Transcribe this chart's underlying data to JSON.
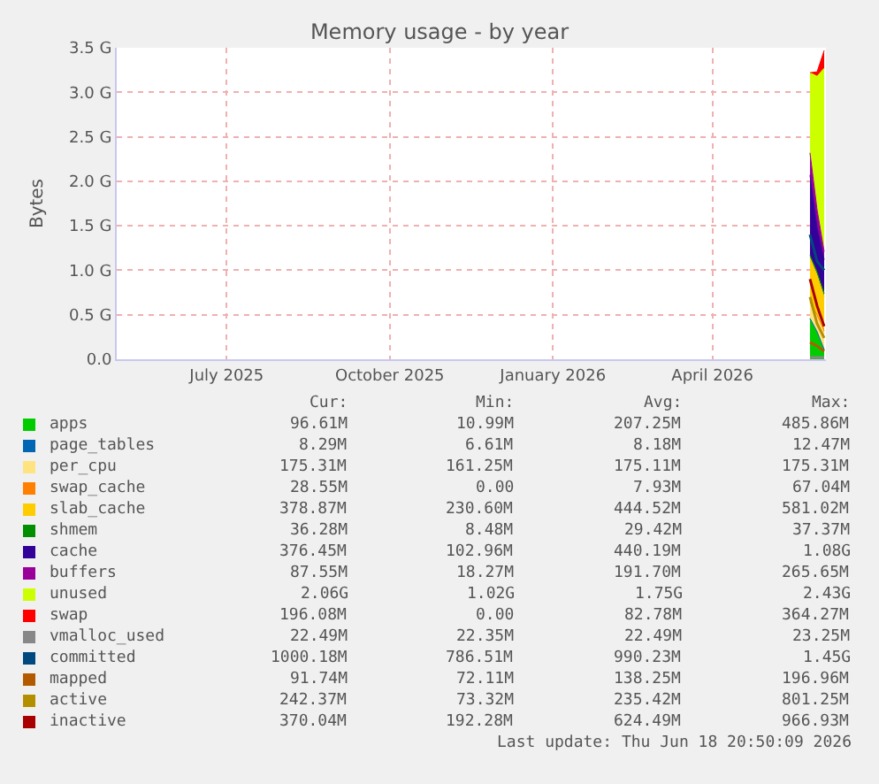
{
  "chart_data": {
    "type": "area",
    "title": "Memory usage - by year",
    "ylabel": "Bytes",
    "stacked": true,
    "grid": true,
    "legend": "bottom",
    "marker": "none",
    "x": [
      "2026-06-10",
      "2026-06-14",
      "2026-06-18"
    ],
    "xlim": [
      "2025-05-15",
      "2026-06-19"
    ],
    "xticks": [
      {
        "value": "2025-07-16",
        "label": "July 2025"
      },
      {
        "value": "2025-10-16",
        "label": "October 2025"
      },
      {
        "value": "2026-01-16",
        "label": "January 2026"
      },
      {
        "value": "2026-04-16",
        "label": "April 2026"
      }
    ],
    "ylim": [
      0,
      3.5
    ],
    "yticks": [
      {
        "value": 0,
        "label": "0.0"
      },
      {
        "value": 0.5,
        "label": "0.5 G"
      },
      {
        "value": 1.0,
        "label": "1.0 G"
      },
      {
        "value": 1.5,
        "label": "1.5 G"
      },
      {
        "value": 2.0,
        "label": "2.0 G"
      },
      {
        "value": 2.5,
        "label": "2.5 G"
      },
      {
        "value": 3.0,
        "label": "3.0 G"
      },
      {
        "value": 3.5,
        "label": "3.5 G"
      }
    ],
    "series": [
      {
        "name": "apps",
        "color": "#00cc00",
        "values": [
          0.45,
          0.3,
          0.1
        ]
      },
      {
        "name": "page_tables",
        "color": "#0066b3",
        "values": [
          0.01,
          0.01,
          0.01
        ]
      },
      {
        "name": "per_cpu",
        "color": "#ffe380",
        "values": [
          0.18,
          0.18,
          0.18
        ]
      },
      {
        "name": "swap_cache",
        "color": "#ff8000",
        "values": [
          0,
          0.01,
          0.03
        ]
      },
      {
        "name": "slab_cache",
        "color": "#ffcc00",
        "values": [
          0.5,
          0.45,
          0.38
        ]
      },
      {
        "name": "shmem",
        "color": "#008f00",
        "values": [
          0.03,
          0.03,
          0.04
        ]
      },
      {
        "name": "cache",
        "color": "#330099",
        "values": [
          0.9,
          0.5,
          0.38
        ]
      },
      {
        "name": "buffers",
        "color": "#990099",
        "values": [
          0.25,
          0.2,
          0.09
        ]
      },
      {
        "name": "unused",
        "color": "#ccff00",
        "values": [
          0.9,
          1.5,
          2.06
        ]
      },
      {
        "name": "swap",
        "color": "#ff0000",
        "values": [
          0,
          0.05,
          0.2
        ]
      },
      {
        "name": "vmalloc_used",
        "type": "line",
        "color": "#888888",
        "values": [
          0.02,
          0.02,
          0.02
        ]
      },
      {
        "name": "committed",
        "type": "line",
        "color": "#00487d",
        "values": [
          1.4,
          1.1,
          1.0
        ]
      },
      {
        "name": "mapped",
        "type": "line",
        "color": "#b35a00",
        "values": [
          0.19,
          0.15,
          0.09
        ]
      },
      {
        "name": "active",
        "type": "line",
        "color": "#b38f00",
        "values": [
          0.7,
          0.4,
          0.24
        ]
      },
      {
        "name": "inactive",
        "type": "line",
        "color": "#a80000",
        "values": [
          0.9,
          0.6,
          0.37
        ]
      }
    ],
    "annotations": [
      "Cur:",
      "Min:",
      "Avg:",
      "Max:",
      "96.61M",
      "10.99M",
      "207.25M",
      "485.86M",
      "8.29M",
      "6.61M",
      "8.18M",
      "12.47M",
      "175.31M",
      "161.25M",
      "175.11M",
      "175.31M",
      "28.55M",
      "0.00",
      "7.93M",
      "67.04M",
      "378.87M",
      "230.60M",
      "444.52M",
      "581.02M",
      "36.28M",
      "8.48M",
      "29.42M",
      "37.37M",
      "376.45M",
      "102.96M",
      "440.19M",
      "1.08G",
      "87.55M",
      "18.27M",
      "191.70M",
      "265.65M",
      "2.06G",
      "1.02G",
      "1.75G",
      "2.43G",
      "196.08M",
      "0.00",
      "82.78M",
      "364.27M",
      "22.49M",
      "22.35M",
      "22.49M",
      "23.25M",
      "1000.18M",
      "786.51M",
      "990.23M",
      "1.45G",
      "91.74M",
      "72.11M",
      "138.25M",
      "196.96M",
      "242.37M",
      "73.32M",
      "235.42M",
      "801.25M",
      "370.04M",
      "192.28M",
      "624.49M",
      "966.93M",
      "Last update: Thu Jun 18 20:50:09 2026"
    ]
  }
}
